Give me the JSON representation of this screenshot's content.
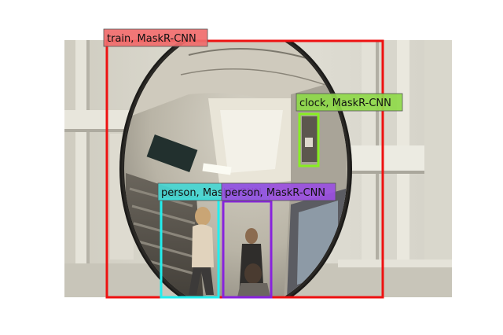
{
  "detections": [
    {
      "label": "train, MaskR-CNN",
      "color": "#ee1111",
      "label_bg": "#f06b6b"
    },
    {
      "label": "clock, MaskR-CNN",
      "color": "#88ee22",
      "label_bg": "#8fd94a"
    },
    {
      "label": "person, MaskR-CNN",
      "color": "#22eeee",
      "label_bg": "#46d6d2"
    },
    {
      "label": "person, MaskR-CNN",
      "color": "#8822dd",
      "label_bg": "#9a4fe0"
    }
  ],
  "scene": {
    "subject": "convex-mirror-reflection"
  }
}
